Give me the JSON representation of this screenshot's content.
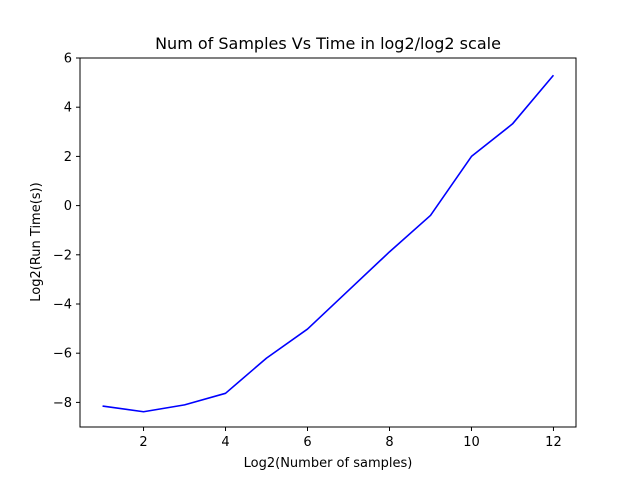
{
  "chart_data": {
    "type": "line",
    "title": "Num of Samples Vs Time in log2/log2 scale",
    "xlabel": "Log2(Number of samples)",
    "ylabel": "Log2(Run Time(s))",
    "xlim": [
      0.45,
      12.55
    ],
    "ylim": [
      -9,
      6
    ],
    "xticks": [
      2,
      4,
      6,
      8,
      10,
      12
    ],
    "yticks": [
      -8,
      -6,
      -4,
      -2,
      0,
      2,
      4,
      6
    ],
    "xtick_labels": [
      "2",
      "4",
      "6",
      "8",
      "10",
      "12"
    ],
    "ytick_labels": [
      "−8",
      "−6",
      "−4",
      "−2",
      "0",
      "2",
      "4",
      "6"
    ],
    "grid": false,
    "series": [
      {
        "color": "#0000ff",
        "x": [
          1,
          2,
          3,
          4,
          5,
          6,
          7,
          8,
          9,
          10,
          11,
          12
        ],
        "y": [
          -8.15,
          -8.38,
          -8.1,
          -7.63,
          -6.2,
          -5.02,
          -3.45,
          -1.88,
          -0.4,
          2.0,
          3.32,
          5.3
        ]
      }
    ]
  }
}
